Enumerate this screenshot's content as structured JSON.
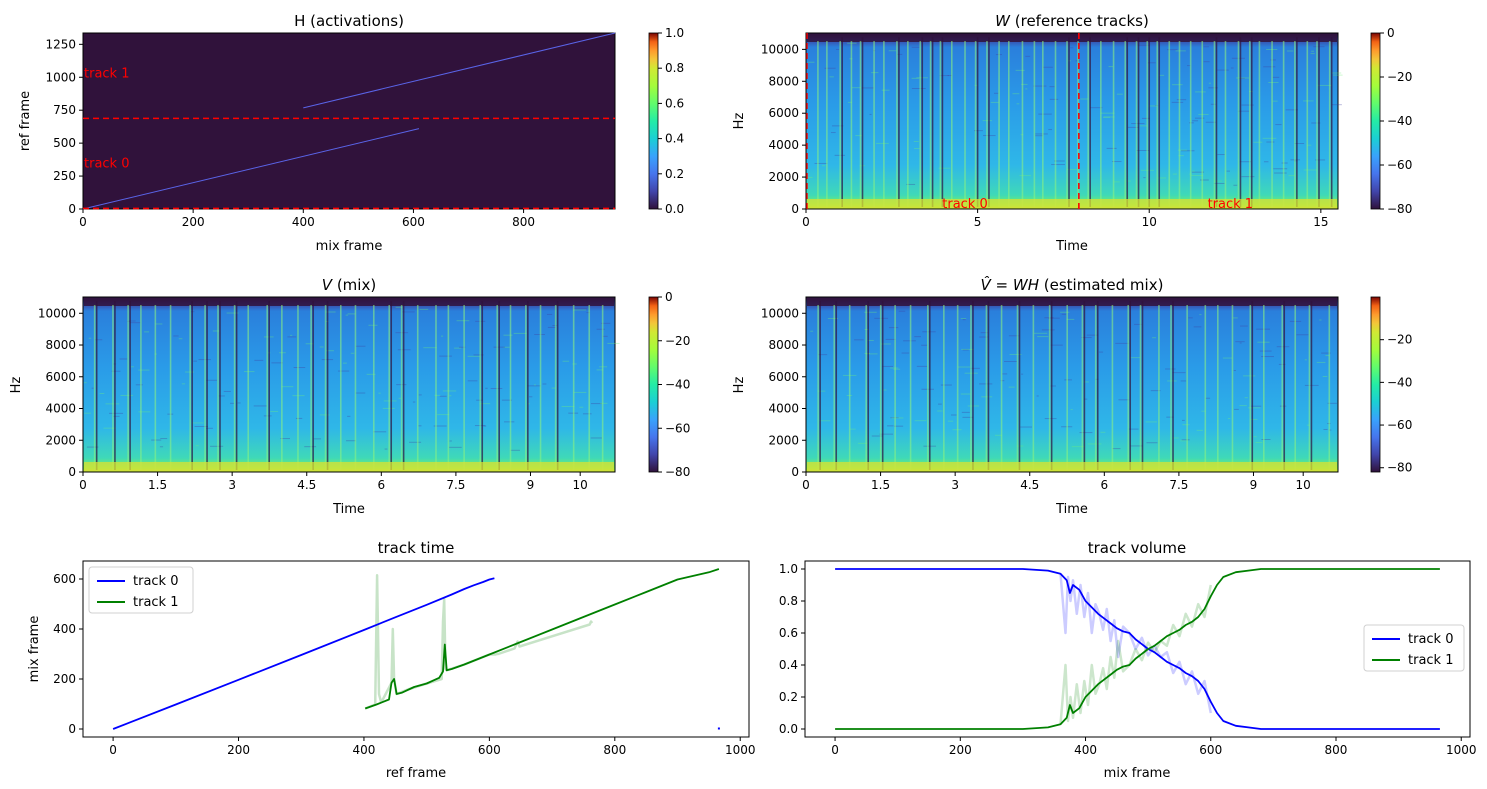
{
  "colors": {
    "track0": "#0000ff",
    "track1": "#008000",
    "annot": "#ff0000",
    "spec_bg": "#30123b"
  },
  "chart_data": [
    {
      "id": "H",
      "type": "heatmap",
      "title": "H (activations)",
      "xlabel": "mix frame",
      "ylabel": "ref frame",
      "xlim": [
        0,
        966
      ],
      "ylim": [
        0,
        1336
      ],
      "xticks": [
        "0",
        "200",
        "400",
        "600",
        "800"
      ],
      "xtick_values": [
        0,
        200,
        400,
        600,
        800
      ],
      "yticks": [
        "0",
        "250",
        "500",
        "750",
        "1000",
        "1250"
      ],
      "ytick_values": [
        0,
        250,
        500,
        750,
        1000,
        1250
      ],
      "colorbar": {
        "min": 0,
        "max": 1,
        "ticks": [
          "0.0",
          "0.2",
          "0.4",
          "0.6",
          "0.8",
          "1.0"
        ],
        "tick_values": [
          0,
          0.2,
          0.4,
          0.6,
          0.8,
          1.0
        ]
      },
      "diagonals": [
        {
          "x": [
            0,
            610
          ],
          "y": [
            0,
            610
          ]
        },
        {
          "x": [
            400,
            966
          ],
          "y": [
            768,
            1336
          ]
        }
      ],
      "hlines": [
        4,
        688
      ],
      "labels": [
        {
          "text": "track 0",
          "y": 344
        },
        {
          "text": "track 1",
          "y": 1030
        }
      ],
      "colormap": "turbo"
    },
    {
      "id": "W",
      "type": "heatmap",
      "title": "W (reference tracks)",
      "title_prefix": "W",
      "title_suffix": " (reference tracks)",
      "xlabel": "Time",
      "ylabel": "Hz",
      "xlim": [
        0,
        15.5
      ],
      "ylim": [
        0,
        11025
      ],
      "xticks": [
        "0",
        "5",
        "10",
        "15"
      ],
      "xtick_values": [
        0,
        5,
        10,
        15
      ],
      "yticks": [
        "0",
        "2000",
        "4000",
        "6000",
        "8000",
        "10000"
      ],
      "ytick_values": [
        0,
        2000,
        4000,
        6000,
        8000,
        10000
      ],
      "colorbar": {
        "min": -80,
        "max": 0,
        "ticks": [
          "−80",
          "−60",
          "−40",
          "−20",
          "0"
        ],
        "tick_values": [
          -80,
          -60,
          -40,
          -20,
          0
        ]
      },
      "vlines": [
        7.95
      ],
      "labels": [
        {
          "text": "track 0",
          "x": 3.97
        },
        {
          "text": "track 1",
          "x": 11.7
        }
      ],
      "colormap": "turbo"
    },
    {
      "id": "V",
      "type": "heatmap",
      "title": "V (mix)",
      "title_prefix": "V",
      "title_suffix": " (mix)",
      "xlabel": "Time",
      "ylabel": "Hz",
      "xlim": [
        0,
        10.7
      ],
      "ylim": [
        0,
        11025
      ],
      "xticks": [
        "0",
        "1.5",
        "3",
        "4.5",
        "6",
        "7.5",
        "9",
        "10"
      ],
      "xtick_values": [
        0,
        1.5,
        3,
        4.5,
        6,
        7.5,
        9,
        10
      ],
      "yticks": [
        "0",
        "2000",
        "4000",
        "6000",
        "8000",
        "10000"
      ],
      "ytick_values": [
        0,
        2000,
        4000,
        6000,
        8000,
        10000
      ],
      "colorbar": {
        "min": -80,
        "max": 0,
        "ticks": [
          "−80",
          "−60",
          "−40",
          "−20",
          "0"
        ],
        "tick_values": [
          -80,
          -60,
          -40,
          -20,
          0
        ]
      },
      "colormap": "turbo"
    },
    {
      "id": "Vhat",
      "type": "heatmap",
      "title": "V̂ = WH (estimated mix)",
      "title_math": "V̂ = WH",
      "title_suffix": " (estimated mix)",
      "xlabel": "Time",
      "ylabel": "Hz",
      "xlim": [
        0,
        10.7
      ],
      "ylim": [
        0,
        11025
      ],
      "xticks": [
        "0",
        "1.5",
        "3",
        "4.5",
        "6",
        "7.5",
        "9",
        "10"
      ],
      "xtick_values": [
        0,
        1.5,
        3,
        4.5,
        6,
        7.5,
        9,
        10
      ],
      "yticks": [
        "0",
        "2000",
        "4000",
        "6000",
        "8000",
        "10000"
      ],
      "ytick_values": [
        0,
        2000,
        4000,
        6000,
        8000,
        10000
      ],
      "colorbar": {
        "min": -82,
        "max": 0,
        "ticks": [
          "−80",
          "−60",
          "−40",
          "−20"
        ],
        "tick_values": [
          -80,
          -60,
          -40,
          -20
        ]
      },
      "colormap": "turbo"
    },
    {
      "id": "track_time",
      "type": "line",
      "title": "track time",
      "xlabel": "ref frame",
      "ylabel": "mix frame",
      "xlim": [
        -48,
        1014
      ],
      "ylim": [
        -32,
        672
      ],
      "xticks": [
        "0",
        "200",
        "400",
        "600",
        "800",
        "1000"
      ],
      "xtick_values": [
        0,
        200,
        400,
        600,
        800,
        1000
      ],
      "yticks": [
        "0",
        "200",
        "400",
        "600"
      ],
      "ytick_values": [
        0,
        200,
        400,
        600
      ],
      "legend": "upper left",
      "series": [
        {
          "name": "track 0",
          "x": [
            0,
            100,
            200,
            300,
            400,
            450,
            500,
            540,
            560,
            575,
            590,
            600,
            608
          ],
          "y": [
            0,
            98,
            197,
            296,
            396,
            447,
            497,
            538,
            560,
            575,
            588,
            598,
            603
          ]
        },
        {
          "name": "track 1",
          "x": [
            402,
            420,
            440,
            444,
            448,
            452,
            460,
            480,
            500,
            520,
            526,
            529,
            532,
            540,
            560,
            600,
            650,
            700,
            750,
            800,
            850,
            900,
            950,
            966
          ],
          "y": [
            82,
            98,
            118,
            185,
            200,
            140,
            145,
            168,
            182,
            205,
            230,
            338,
            235,
            240,
            258,
            298,
            348,
            398,
            448,
            498,
            548,
            598,
            627,
            640
          ]
        }
      ],
      "faint_series": [
        {
          "name": "",
          "x": [
            402,
            418,
            421,
            424,
            427,
            430,
            444,
            446,
            448,
            452,
            470,
            500,
            524,
            526,
            528,
            530,
            532,
            560,
            600,
            610,
            612,
            614,
            640,
            645,
            648,
            760,
            762,
            764
          ],
          "y": [
            82,
            98,
            615,
            140,
            110,
            118,
            185,
            400,
            200,
            140,
            158,
            182,
            200,
            430,
            520,
            240,
            235,
            258,
            298,
            298,
            300,
            300,
            322,
            350,
            330,
            418,
            430,
            424
          ]
        }
      ],
      "points": [
        {
          "x": 966,
          "y": 2
        }
      ]
    },
    {
      "id": "track_volume",
      "type": "line",
      "title": "track volume",
      "xlabel": "mix frame",
      "ylabel": "",
      "xlim": [
        -48,
        1014
      ],
      "ylim": [
        -0.05,
        1.05
      ],
      "xticks": [
        "0",
        "200",
        "400",
        "600",
        "800",
        "1000"
      ],
      "xtick_values": [
        0,
        200,
        400,
        600,
        800,
        1000
      ],
      "yticks": [
        "0.0",
        "0.2",
        "0.4",
        "0.6",
        "0.8",
        "1.0"
      ],
      "ytick_values": [
        0,
        0.2,
        0.4,
        0.6,
        0.8,
        1.0
      ],
      "legend": "center right",
      "series": [
        {
          "name": "track 0",
          "x": [
            0,
            300,
            340,
            360,
            370,
            375,
            380,
            390,
            400,
            410,
            420,
            430,
            440,
            450,
            460,
            470,
            480,
            490,
            500,
            510,
            520,
            530,
            540,
            550,
            560,
            570,
            580,
            590,
            600,
            610,
            620,
            640,
            660,
            680,
            700,
            800,
            966
          ],
          "y": [
            1.0,
            1.0,
            0.99,
            0.97,
            0.93,
            0.85,
            0.9,
            0.87,
            0.8,
            0.76,
            0.72,
            0.69,
            0.66,
            0.63,
            0.61,
            0.6,
            0.56,
            0.53,
            0.5,
            0.48,
            0.45,
            0.42,
            0.4,
            0.38,
            0.35,
            0.33,
            0.3,
            0.25,
            0.17,
            0.1,
            0.05,
            0.02,
            0.01,
            0.0,
            0.0,
            0.0,
            0.0
          ]
        },
        {
          "name": "track 1",
          "x": [
            0,
            300,
            340,
            360,
            370,
            375,
            380,
            390,
            400,
            410,
            420,
            430,
            440,
            450,
            460,
            470,
            480,
            490,
            500,
            510,
            520,
            530,
            540,
            550,
            560,
            570,
            580,
            590,
            600,
            610,
            620,
            640,
            660,
            680,
            700,
            800,
            966
          ],
          "y": [
            0.0,
            0.0,
            0.01,
            0.03,
            0.07,
            0.15,
            0.1,
            0.13,
            0.2,
            0.24,
            0.28,
            0.31,
            0.34,
            0.37,
            0.39,
            0.4,
            0.44,
            0.47,
            0.5,
            0.52,
            0.55,
            0.58,
            0.6,
            0.62,
            0.65,
            0.67,
            0.7,
            0.75,
            0.83,
            0.9,
            0.95,
            0.98,
            0.99,
            1.0,
            1.0,
            1.0,
            1.0
          ]
        }
      ],
      "faint_series": [
        {
          "name": "",
          "x": [
            360,
            368,
            372,
            376,
            380,
            386,
            392,
            398,
            404,
            410,
            416,
            422,
            428,
            434,
            440,
            446,
            452,
            460,
            470,
            480,
            490,
            500,
            510,
            520,
            530,
            540,
            550,
            560,
            570,
            580,
            590,
            600
          ],
          "y": [
            0.97,
            0.6,
            0.95,
            0.8,
            0.93,
            0.72,
            0.9,
            0.7,
            0.85,
            0.6,
            0.78,
            0.72,
            0.62,
            0.75,
            0.55,
            0.68,
            0.45,
            0.64,
            0.6,
            0.5,
            0.57,
            0.46,
            0.52,
            0.45,
            0.48,
            0.35,
            0.42,
            0.28,
            0.36,
            0.22,
            0.3,
            0.1
          ]
        },
        {
          "name": "",
          "x": [
            360,
            368,
            372,
            376,
            380,
            386,
            392,
            398,
            404,
            410,
            416,
            422,
            428,
            434,
            440,
            446,
            452,
            460,
            470,
            480,
            490,
            500,
            510,
            520,
            530,
            540,
            550,
            560,
            570,
            580,
            590,
            600
          ],
          "y": [
            0.03,
            0.4,
            0.05,
            0.2,
            0.07,
            0.28,
            0.1,
            0.3,
            0.15,
            0.4,
            0.22,
            0.28,
            0.38,
            0.25,
            0.45,
            0.32,
            0.55,
            0.36,
            0.4,
            0.5,
            0.43,
            0.54,
            0.48,
            0.55,
            0.52,
            0.65,
            0.58,
            0.72,
            0.64,
            0.78,
            0.7,
            0.9
          ]
        }
      ]
    }
  ]
}
